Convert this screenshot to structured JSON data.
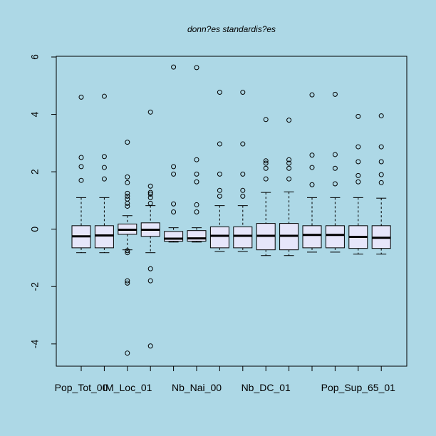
{
  "colors": {
    "background": "#add8e6",
    "box_fill": "#e6e6fa",
    "stroke": "#000000"
  },
  "chart_data": {
    "type": "boxplot",
    "title": "donn?es standardis?es",
    "xlabel": "",
    "ylabel": "",
    "ylim": [
      -4.75,
      6.0
    ],
    "y_ticks": [
      -4,
      -2,
      0,
      2,
      4,
      6
    ],
    "y_tick_labels": [
      "-4",
      "-2",
      "0",
      "2",
      "4",
      "6"
    ],
    "grid": false,
    "x_tick_labels": [
      {
        "position": 1,
        "label": "Pop_Tot_00"
      },
      {
        "position": 3,
        "label": "IM_Loc_01"
      },
      {
        "position": 6,
        "label": "Nb_Nai_00"
      },
      {
        "position": 9,
        "label": "Nb_DC_01"
      },
      {
        "position": 13,
        "label": "Pop_Sup_65_01"
      }
    ],
    "boxes": [
      {
        "whisker_low": -0.82,
        "q1": -0.65,
        "median": -0.25,
        "q3": 0.12,
        "whisker_high": 1.1,
        "outliers": [
          1.7,
          2.18,
          2.5,
          4.6
        ]
      },
      {
        "whisker_low": -0.82,
        "q1": -0.65,
        "median": -0.22,
        "q3": 0.12,
        "whisker_high": 1.1,
        "outliers": [
          1.75,
          2.15,
          2.53,
          4.63
        ]
      },
      {
        "whisker_low": -0.72,
        "q1": -0.18,
        "median": -0.02,
        "q3": 0.18,
        "whisker_high": 0.47,
        "outliers": [
          0.8,
          0.9,
          1.05,
          1.15,
          1.25,
          1.62,
          1.82,
          3.03,
          -0.75,
          -0.82,
          -1.8,
          -1.88,
          -4.32
        ]
      },
      {
        "whisker_low": -0.82,
        "q1": -0.25,
        "median": -0.02,
        "q3": 0.22,
        "whisker_high": 0.82,
        "outliers": [
          0.9,
          1.1,
          1.22,
          1.28,
          1.5,
          4.08,
          -1.38,
          -1.8,
          -4.07
        ]
      },
      {
        "whisker_low": -0.45,
        "q1": -0.42,
        "median": -0.33,
        "q3": -0.08,
        "whisker_high": 0.05,
        "outliers": [
          0.6,
          0.88,
          1.92,
          2.18,
          5.65
        ]
      },
      {
        "whisker_low": -0.45,
        "q1": -0.42,
        "median": -0.32,
        "q3": -0.05,
        "whisker_high": 0.05,
        "outliers": [
          0.6,
          0.85,
          1.65,
          1.92,
          2.42,
          5.63
        ]
      },
      {
        "whisker_low": -0.78,
        "q1": -0.65,
        "median": -0.23,
        "q3": 0.08,
        "whisker_high": 0.82,
        "outliers": [
          1.15,
          1.35,
          1.92,
          2.97,
          4.77
        ]
      },
      {
        "whisker_low": -0.78,
        "q1": -0.65,
        "median": -0.23,
        "q3": 0.08,
        "whisker_high": 0.82,
        "outliers": [
          1.15,
          1.35,
          1.92,
          2.97,
          4.77
        ]
      },
      {
        "whisker_low": -0.92,
        "q1": -0.72,
        "median": -0.23,
        "q3": 0.2,
        "whisker_high": 1.28,
        "outliers": [
          1.75,
          2.12,
          2.3,
          2.38,
          3.82
        ]
      },
      {
        "whisker_low": -0.92,
        "q1": -0.72,
        "median": -0.23,
        "q3": 0.2,
        "whisker_high": 1.3,
        "outliers": [
          1.75,
          2.12,
          2.3,
          2.42,
          3.8
        ]
      },
      {
        "whisker_low": -0.8,
        "q1": -0.65,
        "median": -0.2,
        "q3": 0.12,
        "whisker_high": 1.1,
        "outliers": [
          1.55,
          2.15,
          2.58,
          4.68
        ]
      },
      {
        "whisker_low": -0.8,
        "q1": -0.65,
        "median": -0.2,
        "q3": 0.12,
        "whisker_high": 1.1,
        "outliers": [
          1.58,
          2.12,
          2.6,
          4.7
        ]
      },
      {
        "whisker_low": -0.87,
        "q1": -0.67,
        "median": -0.27,
        "q3": 0.12,
        "whisker_high": 1.1,
        "outliers": [
          1.65,
          1.87,
          2.35,
          2.87,
          3.93
        ]
      },
      {
        "whisker_low": -0.87,
        "q1": -0.67,
        "median": -0.3,
        "q3": 0.12,
        "whisker_high": 1.08,
        "outliers": [
          1.62,
          1.9,
          2.35,
          2.87,
          3.95
        ]
      }
    ]
  }
}
